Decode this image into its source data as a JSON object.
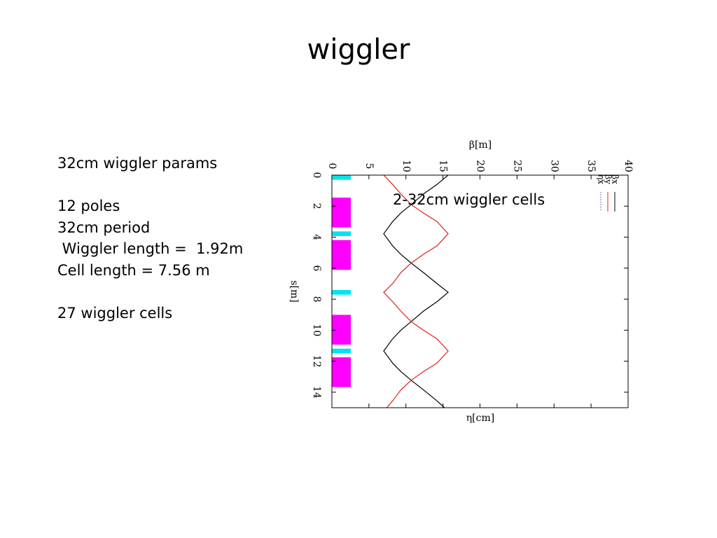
{
  "slide": {
    "title": "wiggler",
    "params_lines": [
      "32cm wiggler params",
      "",
      "12 poles",
      "32cm period",
      " Wiggler length =  1.92m",
      "Cell length = 7.56 m",
      "",
      "27 wiggler cells"
    ],
    "cells_label": "2-32cm wiggler cells"
  },
  "chart_data": {
    "type": "line",
    "orientation": "rotated: s runs downward, beta/eta runs rightward",
    "title": "",
    "xlabel": "β[m]",
    "x2label": "η[cm]",
    "ylabel": "s[m]",
    "xlim": [
      0,
      40
    ],
    "ylim": [
      0,
      15
    ],
    "x_ticks": [
      "0",
      "5",
      "10",
      "15",
      "20",
      "25",
      "30",
      "35",
      "40"
    ],
    "y_ticks": [
      "0",
      "2",
      "4",
      "6",
      "8",
      "10",
      "12",
      "14"
    ],
    "legend_position": "top-right",
    "series": [
      {
        "name": "βx",
        "color": "#000000",
        "style": "solid",
        "s": [
          0,
          0.6,
          1.2,
          1.9,
          2.45,
          3.0,
          3.78,
          4.56,
          5.1,
          5.67,
          6.3,
          7.0,
          7.56,
          8.16,
          8.76,
          9.45,
          10.01,
          10.56,
          11.34,
          12.12,
          12.66,
          13.23,
          13.86,
          14.56,
          15.0
        ],
        "beta": [
          15.7,
          14.2,
          12.4,
          10.7,
          9.3,
          8.2,
          7.0,
          8.2,
          9.3,
          10.7,
          12.4,
          14.2,
          15.7,
          14.2,
          12.4,
          10.7,
          9.3,
          8.2,
          7.0,
          8.2,
          9.3,
          10.7,
          12.4,
          14.2,
          15.2
        ]
      },
      {
        "name": "βy",
        "color": "#e02020",
        "style": "solid",
        "s": [
          0,
          0.6,
          1.2,
          1.9,
          2.45,
          3.0,
          3.78,
          4.56,
          5.1,
          5.67,
          6.3,
          7.0,
          7.56,
          8.16,
          8.76,
          9.45,
          10.01,
          10.56,
          11.34,
          12.12,
          12.66,
          13.23,
          13.86,
          14.56,
          15.0
        ],
        "beta": [
          7.0,
          8.2,
          9.3,
          10.7,
          12.4,
          14.2,
          15.7,
          14.2,
          12.4,
          10.7,
          9.3,
          8.2,
          7.0,
          8.2,
          9.3,
          10.7,
          12.4,
          14.2,
          15.7,
          14.2,
          12.4,
          10.7,
          9.3,
          8.2,
          7.4
        ]
      },
      {
        "name": "ηx",
        "color": "#3344cc",
        "style": "dotted",
        "s": [
          0,
          15.0
        ],
        "beta": [
          0,
          0
        ]
      }
    ],
    "magnet_layout": [
      {
        "kind": "quadrupole",
        "color": "#00e5ee",
        "s_start": 0.0,
        "s_end": 0.3
      },
      {
        "kind": "wiggler",
        "color": "#ff00ff",
        "s_start": 1.45,
        "s_end": 3.37
      },
      {
        "kind": "quadrupole",
        "color": "#00e5ee",
        "s_start": 3.63,
        "s_end": 3.93
      },
      {
        "kind": "wiggler",
        "color": "#ff00ff",
        "s_start": 4.19,
        "s_end": 6.11
      },
      {
        "kind": "quadrupole",
        "color": "#00e5ee",
        "s_start": 7.41,
        "s_end": 7.71
      },
      {
        "kind": "wiggler",
        "color": "#ff00ff",
        "s_start": 9.01,
        "s_end": 10.93
      },
      {
        "kind": "quadrupole",
        "color": "#00e5ee",
        "s_start": 11.19,
        "s_end": 11.49
      },
      {
        "kind": "wiggler",
        "color": "#ff00ff",
        "s_start": 11.75,
        "s_end": 13.67
      }
    ]
  }
}
